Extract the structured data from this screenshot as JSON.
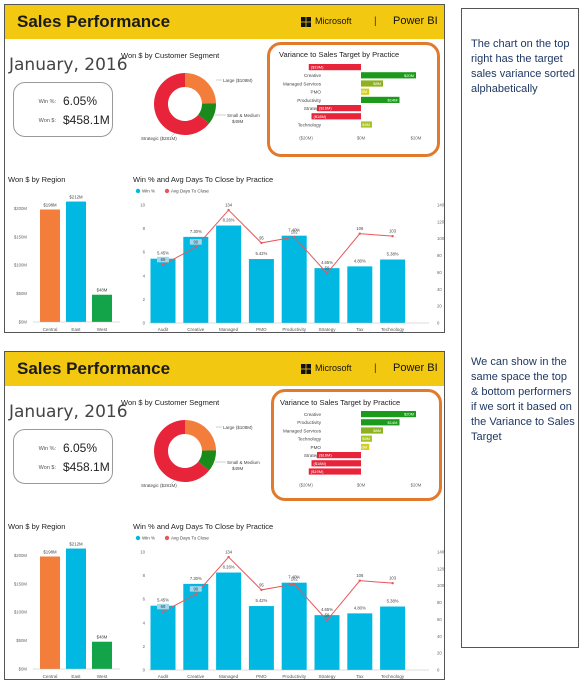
{
  "panels": [
    {
      "header": {
        "title": "Sales Performance",
        "microsoft": "Microsoft",
        "divider": "|",
        "powerbi": "Power BI"
      },
      "date": "January, 2016",
      "kpi": {
        "win_label": "Win %:",
        "win_value": "6.05%",
        "won_label": "Won $:",
        "won_value": "$458.1M"
      },
      "segment": {
        "title": "Won $ by Customer Segment",
        "label_large": "Large ($108M)",
        "label_small": "Small & Medium",
        "label_small2": "$49M",
        "label_strategic": "Strategic ($281M)"
      },
      "variance": {
        "title": "Variance to Sales Target by Practice"
      },
      "region": {
        "title": "Won $ by Region"
      },
      "win": {
        "title": "Win % and Avg Days To Close by Practice",
        "legend_win": "Win %",
        "legend_days": "Avg Days To Close"
      }
    },
    {
      "header": {
        "title": "Sales Performance",
        "microsoft": "Microsoft",
        "divider": "|",
        "powerbi": "Power BI"
      },
      "date": "January, 2016",
      "kpi": {
        "win_label": "Win %:",
        "win_value": "6.05%",
        "won_label": "Won $:",
        "won_value": "$458.1M"
      },
      "segment": {
        "title": "Won $ by Customer Segment",
        "label_large": "Large ($108M)",
        "label_small": "Small & Medium",
        "label_small2": "$49M",
        "label_strategic": "Strategic ($281M)"
      },
      "variance": {
        "title": "Variance to Sales Target by Practice"
      },
      "region": {
        "title": "Won $ by Region"
      },
      "win": {
        "title": "Win % and Avg Days To Close by Practice",
        "legend_win": "Win %",
        "legend_days": "Avg Days To Close"
      }
    }
  ],
  "notes": {
    "top": "The chart on the top right has the target sales variance sorted alphabetically",
    "bottom": "We can show in the same space the top & bottom performers if we sort it based on the Variance to Sales Target"
  },
  "colors": {
    "header": "#f2c811",
    "highlight": "#e27a2c",
    "blue": "#01b8e3",
    "orange": "#f37d3a",
    "green": "#13a348",
    "red": "#e8243a",
    "darkgreen": "#1a8a1a",
    "olive": "#9bbb1f",
    "yellow": "#d3c914",
    "line": "#e8575a"
  },
  "chart_data": [
    {
      "type": "pie",
      "title": "Won $ by Customer Segment",
      "categories": [
        "Strategic",
        "Large",
        "Small & Medium"
      ],
      "values": [
        281,
        108,
        49
      ],
      "unit": "$M"
    },
    {
      "type": "bar",
      "title": "Variance to Sales Target by Practice",
      "sort": "alphabetical",
      "categories": [
        "Audit",
        "Creative",
        "Managed Services",
        "PMO",
        "Productivity",
        "Strategy",
        "Tax",
        "Technology"
      ],
      "values": [
        -19,
        20,
        8,
        3,
        14,
        -16,
        -18,
        4
      ],
      "labels": [
        "($19M)",
        "$20M",
        "$8M",
        "$3M",
        "$14M",
        "($16M)",
        "($18M)",
        "$4M"
      ],
      "xticks": [
        "($20M)",
        "$0M",
        "$20M"
      ],
      "xlim": [
        -20,
        20
      ]
    },
    {
      "type": "bar",
      "title": "Variance to Sales Target by Practice",
      "sort": "descending",
      "categories": [
        "Creative",
        "Productivity",
        "Managed Services",
        "Technology",
        "PMO",
        "Strategy",
        "Tax",
        "Audit"
      ],
      "values": [
        20,
        14,
        8,
        4,
        3,
        -16,
        -18,
        -19
      ],
      "labels": [
        "$20M",
        "$14M",
        "$8M",
        "$4M",
        "$3M",
        "($16M)",
        "($18M)",
        "($19M)"
      ],
      "xticks": [
        "($20M)",
        "$0M",
        "$20M"
      ],
      "xlim": [
        -20,
        20
      ]
    },
    {
      "type": "bar",
      "title": "Won $ by Region",
      "categories": [
        "Central",
        "East",
        "West"
      ],
      "values": [
        198,
        212,
        48
      ],
      "labels": [
        "$198M",
        "$212M",
        "$48M"
      ],
      "yticks": [
        "$0M",
        "$50M",
        "$100M",
        "$150M",
        "$200M"
      ],
      "ylim": [
        0,
        220
      ]
    },
    {
      "type": "bar",
      "title": "Win % and Avg Days To Close by Practice",
      "categories": [
        "Audit",
        "Creative",
        "Managed Services",
        "PMO",
        "Productivity",
        "Strategy",
        "Tax",
        "Technology"
      ],
      "series": [
        {
          "name": "Win %",
          "type": "bar",
          "values": [
            5.45,
            7.3,
            8.26,
            5.42,
            7.4,
            4.65,
            4.8,
            5.38
          ],
          "labels": [
            "5.45%",
            "7.30%",
            "8.26%",
            "5.42%",
            "7.40%",
            "4.65%",
            "4.80%",
            "5.38%"
          ]
        },
        {
          "name": "Avg Days To Close",
          "type": "line",
          "values": [
            69,
            90,
            134,
            95,
            102,
            59,
            106,
            103
          ],
          "labels": [
            "69",
            "90",
            "134",
            "95",
            "102",
            "59",
            "106",
            "103"
          ]
        }
      ],
      "yticks_left": [
        "0",
        "2",
        "4",
        "6",
        "8",
        "10"
      ],
      "yticks_right": [
        "0",
        "20",
        "40",
        "60",
        "80",
        "100",
        "120",
        "140"
      ],
      "ylim_left": [
        0,
        10
      ],
      "ylim_right": [
        0,
        140
      ]
    }
  ]
}
